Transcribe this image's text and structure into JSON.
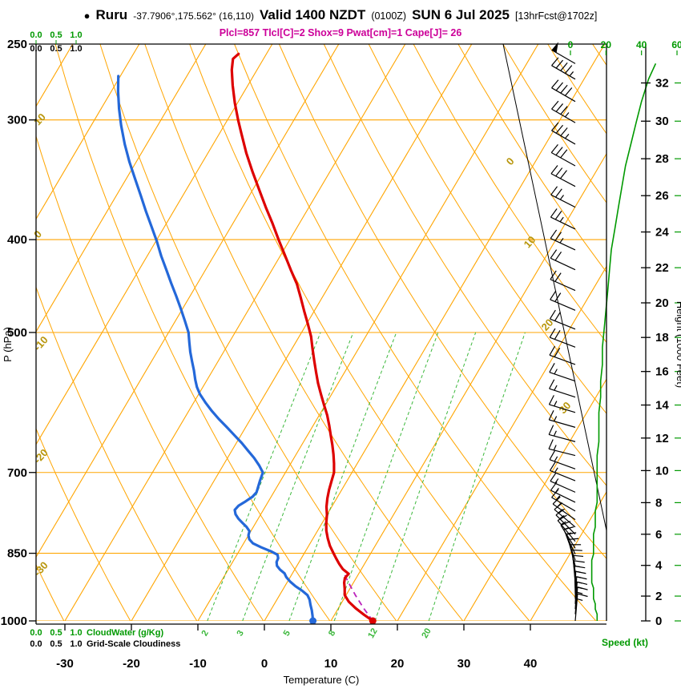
{
  "header": {
    "bullet": "●",
    "station": "Ruru",
    "coords": "-37.7906°,175.562° (16,110)",
    "valid": "Valid 1400 NZDT",
    "valid_z": "(0100Z)",
    "valid_date": "SUN 6 Jul 2025",
    "fcst": "[13hrFcst@1702z]",
    "indices": "Plcl=857 Tlcl[C]=2 Shox=9 Pwat[cm]=1 Cape[J]= 26"
  },
  "axes": {
    "pressure_label": "P (hPa)",
    "temperature_label": "Temperature (C)",
    "height_label": "Height (1000 Feet)",
    "speed_label": "Speed (kt)",
    "cloudwater_label": "CloudWater (g/Kg)",
    "cloudwater_ticks": [
      "0.0",
      "0.5",
      "1.0"
    ],
    "cloudiness_label": "Grid-Scale Cloudiness",
    "cloudiness_ticks": [
      "0.0",
      "0.5",
      "1.0"
    ]
  },
  "colors": {
    "temperature": "#dd0000",
    "dewpoint": "#2468d9",
    "parcel": "#bb22bb",
    "grid": "#ffa500",
    "mixing_ratio": "#3cb83c",
    "speed_curve": "#009900",
    "green_text": "#009900",
    "isotherm_label": "#b8960c",
    "wind_barb": "#000000",
    "indices_text": "#cc0099"
  },
  "chart_data": {
    "type": "line",
    "chart": "skew-t log-p atmospheric sounding",
    "pressure_axis_hpa": [
      250,
      300,
      400,
      500,
      700,
      850,
      1000
    ],
    "temperature_axis_c": [
      -30,
      -20,
      -10,
      0,
      10,
      20,
      30,
      40
    ],
    "height_axis_kft": [
      0,
      2,
      4,
      6,
      8,
      10,
      12,
      14,
      16,
      18,
      20,
      22,
      24,
      26,
      28,
      30,
      32
    ],
    "speed_axis_kt": [
      0,
      20,
      40,
      60
    ],
    "isotherm_labels_left_c": [
      10,
      0,
      -10,
      -20,
      -30
    ],
    "isotherm_labels_right_c": [
      0,
      10,
      20,
      30
    ],
    "mixing_ratio_g_kg": [
      2,
      3,
      5,
      8,
      12,
      20
    ],
    "surface_temp_c": 16.3,
    "surface_dewpoint_c": 7.3,
    "temperature_profile_p_t": [
      [
        1000,
        16.3
      ],
      [
        985,
        14.4
      ],
      [
        970,
        12.6
      ],
      [
        955,
        11.0
      ],
      [
        940,
        9.8
      ],
      [
        925,
        9.2
      ],
      [
        912,
        8.6
      ],
      [
        902,
        8.3
      ],
      [
        893,
        8.5
      ],
      [
        883,
        7.2
      ],
      [
        872,
        6.2
      ],
      [
        860,
        5.2
      ],
      [
        850,
        4.4
      ],
      [
        835,
        3.2
      ],
      [
        820,
        2.2
      ],
      [
        805,
        1.3
      ],
      [
        790,
        0.6
      ],
      [
        775,
        0.0
      ],
      [
        760,
        -0.8
      ],
      [
        745,
        -1.4
      ],
      [
        730,
        -1.9
      ],
      [
        715,
        -2.3
      ],
      [
        700,
        -2.7
      ],
      [
        685,
        -3.5
      ],
      [
        670,
        -4.4
      ],
      [
        655,
        -5.4
      ],
      [
        640,
        -6.5
      ],
      [
        625,
        -7.6
      ],
      [
        610,
        -8.8
      ],
      [
        595,
        -10.2
      ],
      [
        580,
        -11.6
      ],
      [
        565,
        -13.0
      ],
      [
        550,
        -14.3
      ],
      [
        535,
        -15.6
      ],
      [
        520,
        -16.9
      ],
      [
        505,
        -18.2
      ],
      [
        490,
        -19.8
      ],
      [
        475,
        -21.5
      ],
      [
        460,
        -23.2
      ],
      [
        445,
        -25.0
      ],
      [
        430,
        -27.2
      ],
      [
        415,
        -29.4
      ],
      [
        400,
        -31.7
      ],
      [
        385,
        -34.0
      ],
      [
        370,
        -36.5
      ],
      [
        355,
        -39.0
      ],
      [
        340,
        -41.6
      ],
      [
        325,
        -44.2
      ],
      [
        310,
        -46.7
      ],
      [
        300,
        -48.4
      ],
      [
        288,
        -50.4
      ],
      [
        276,
        -52.3
      ],
      [
        266,
        -53.8
      ],
      [
        259,
        -54.6
      ],
      [
        256,
        -54.2
      ]
    ],
    "dewpoint_profile_p_td": [
      [
        1000,
        7.3
      ],
      [
        988,
        6.8
      ],
      [
        975,
        6.2
      ],
      [
        962,
        5.5
      ],
      [
        950,
        4.9
      ],
      [
        940,
        4.2
      ],
      [
        930,
        3.0
      ],
      [
        920,
        1.6
      ],
      [
        910,
        0.4
      ],
      [
        900,
        -0.6
      ],
      [
        892,
        -1.2
      ],
      [
        884,
        -2.2
      ],
      [
        876,
        -3.0
      ],
      [
        868,
        -3.4
      ],
      [
        860,
        -3.5
      ],
      [
        853,
        -3.9
      ],
      [
        846,
        -5.2
      ],
      [
        838,
        -7.0
      ],
      [
        830,
        -8.6
      ],
      [
        822,
        -9.5
      ],
      [
        814,
        -10.0
      ],
      [
        806,
        -10.2
      ],
      [
        798,
        -11.0
      ],
      [
        790,
        -12.0
      ],
      [
        782,
        -13.0
      ],
      [
        774,
        -13.8
      ],
      [
        766,
        -14.3
      ],
      [
        758,
        -14.1
      ],
      [
        750,
        -13.4
      ],
      [
        742,
        -12.8
      ],
      [
        734,
        -12.6
      ],
      [
        726,
        -12.8
      ],
      [
        714,
        -13.1
      ],
      [
        700,
        -13.4
      ],
      [
        688,
        -14.6
      ],
      [
        676,
        -16.0
      ],
      [
        664,
        -17.6
      ],
      [
        652,
        -19.2
      ],
      [
        640,
        -21.0
      ],
      [
        628,
        -22.8
      ],
      [
        616,
        -24.7
      ],
      [
        604,
        -26.5
      ],
      [
        592,
        -28.2
      ],
      [
        580,
        -29.8
      ],
      [
        570,
        -30.9
      ],
      [
        560,
        -31.8
      ],
      [
        548,
        -32.8
      ],
      [
        536,
        -33.9
      ],
      [
        524,
        -35.0
      ],
      [
        512,
        -36.0
      ],
      [
        500,
        -37.0
      ],
      [
        486,
        -38.6
      ],
      [
        472,
        -40.3
      ],
      [
        458,
        -42.1
      ],
      [
        444,
        -44.0
      ],
      [
        430,
        -45.9
      ],
      [
        416,
        -47.9
      ],
      [
        402,
        -49.8
      ],
      [
        388,
        -51.9
      ],
      [
        374,
        -54.1
      ],
      [
        360,
        -56.3
      ],
      [
        346,
        -58.6
      ],
      [
        332,
        -61.0
      ],
      [
        318,
        -63.3
      ],
      [
        304,
        -65.5
      ],
      [
        292,
        -67.3
      ],
      [
        280,
        -69.0
      ],
      [
        270,
        -70.3
      ]
    ],
    "parcel_path_p_t": [
      [
        1000,
        16.3
      ],
      [
        970,
        13.8
      ],
      [
        940,
        11.4
      ],
      [
        910,
        9.1
      ],
      [
        890,
        7.6
      ]
    ],
    "wind_profile_p_dir_spd": [
      [
        262,
        300,
        48
      ],
      [
        272,
        300,
        44
      ],
      [
        287,
        300,
        40
      ],
      [
        302,
        300,
        37
      ],
      [
        318,
        300,
        34
      ],
      [
        335,
        299,
        31
      ],
      [
        352,
        298,
        29
      ],
      [
        370,
        297,
        27
      ],
      [
        390,
        296,
        25
      ],
      [
        410,
        295,
        23
      ],
      [
        430,
        295,
        22
      ],
      [
        452,
        294,
        21
      ],
      [
        474,
        293,
        20
      ],
      [
        496,
        292,
        19
      ],
      [
        518,
        291,
        18
      ],
      [
        540,
        290,
        18
      ],
      [
        562,
        289,
        17
      ],
      [
        584,
        288,
        17
      ],
      [
        606,
        287,
        16
      ],
      [
        628,
        286,
        16
      ],
      [
        650,
        285,
        16
      ],
      [
        672,
        284,
        15
      ],
      [
        694,
        290,
        15
      ],
      [
        714,
        292,
        15
      ],
      [
        734,
        294,
        15
      ],
      [
        752,
        296,
        15
      ],
      [
        768,
        300,
        14
      ],
      [
        784,
        305,
        14
      ],
      [
        798,
        310,
        14
      ],
      [
        812,
        315,
        13
      ],
      [
        826,
        320,
        13
      ],
      [
        840,
        328,
        13
      ],
      [
        852,
        335,
        13
      ],
      [
        864,
        340,
        12
      ],
      [
        876,
        345,
        12
      ],
      [
        888,
        350,
        12
      ],
      [
        900,
        353,
        12
      ],
      [
        912,
        355,
        12
      ],
      [
        924,
        358,
        13
      ],
      [
        936,
        359,
        13
      ],
      [
        948,
        1,
        13
      ],
      [
        960,
        3,
        14
      ],
      [
        972,
        4,
        14
      ],
      [
        984,
        5,
        15
      ],
      [
        1000,
        5,
        15
      ]
    ]
  }
}
